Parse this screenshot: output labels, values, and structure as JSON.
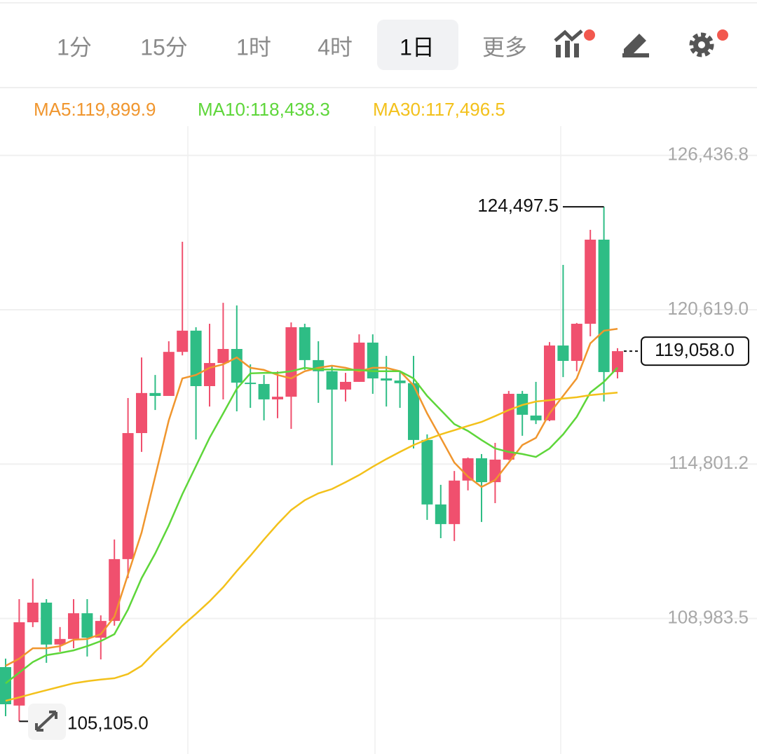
{
  "toolbar": {
    "tabs": [
      "1分",
      "15分",
      "1时",
      "4时",
      "1日",
      "更多"
    ],
    "active_tab": 4
  },
  "chart_data": {
    "type": "candlestick",
    "up_color": "#f0506e",
    "down_color": "#2ebd85",
    "open": [
      107150,
      105700,
      108840,
      109580,
      108000,
      108210,
      109180,
      108260,
      108890,
      111220,
      115970,
      117480,
      117370,
      119030,
      119830,
      117740,
      118610,
      119140,
      117870,
      117820,
      117240,
      117340,
      119960,
      118720,
      118300,
      117610,
      117900,
      119380,
      118030,
      117950,
      117850,
      115710,
      113280,
      112540,
      114180,
      115020,
      114120,
      114970,
      117450,
      116630,
      116450,
      119270,
      118690,
      120090,
      123260,
      118270
    ],
    "high": [
      107470,
      109710,
      110480,
      109710,
      108660,
      109710,
      109710,
      109100,
      111960,
      117290,
      118820,
      118160,
      119430,
      123180,
      119960,
      120090,
      120880,
      120780,
      118560,
      118160,
      118300,
      120140,
      120090,
      119430,
      118530,
      118240,
      119690,
      119690,
      118880,
      118300,
      118880,
      115920,
      114020,
      114540,
      115050,
      115180,
      115600,
      117560,
      117560,
      117900,
      119400,
      122310,
      120120,
      123630,
      124497.5,
      119170
    ],
    "low": [
      105300,
      105105,
      108660,
      107310,
      107730,
      107860,
      107550,
      107440,
      108710,
      110500,
      115260,
      116840,
      117370,
      118900,
      115730,
      116970,
      117240,
      116790,
      116920,
      116450,
      116530,
      116130,
      118350,
      117110,
      114760,
      117160,
      117900,
      117450,
      116970,
      116920,
      115390,
      112700,
      112010,
      111900,
      113810,
      112620,
      113330,
      114950,
      115870,
      116310,
      116420,
      118080,
      118300,
      119620,
      117160,
      118030
    ],
    "close": [
      105750,
      108840,
      109580,
      108000,
      108210,
      109180,
      108260,
      108890,
      111220,
      115970,
      117480,
      117370,
      119030,
      119830,
      117740,
      118610,
      119140,
      117870,
      117820,
      117240,
      117340,
      119960,
      118720,
      118300,
      117610,
      117900,
      119380,
      118030,
      117950,
      117850,
      115710,
      113280,
      112540,
      114180,
      115020,
      114120,
      114970,
      117450,
      116660,
      116450,
      119270,
      118690,
      120090,
      123260,
      118270,
      119058
    ],
    "series": [
      {
        "name": "MA5:119,899.9",
        "color": "#f0962e",
        "values": [
          107200,
          107470,
          107860,
          107860,
          107940,
          108180,
          108210,
          108390,
          109050,
          110640,
          112220,
          114330,
          116450,
          118030,
          118160,
          118430,
          118560,
          118820,
          118430,
          118350,
          118160,
          118030,
          118300,
          118430,
          118510,
          118430,
          118300,
          118430,
          118430,
          118300,
          117770,
          116710,
          115790,
          114860,
          114330,
          113940,
          114200,
          114860,
          115520,
          115790,
          116710,
          117370,
          118030,
          119350,
          119830,
          119899.9
        ]
      },
      {
        "name": "MA10:118,438.3",
        "color": "#5ed63a",
        "values": [
          106540,
          106940,
          107340,
          107600,
          107680,
          107780,
          107940,
          108130,
          108390,
          109320,
          110500,
          111430,
          112490,
          113670,
          114730,
          115790,
          116710,
          117640,
          118220,
          118240,
          118240,
          118300,
          118430,
          118370,
          118370,
          118350,
          118350,
          118300,
          118300,
          118300,
          118030,
          117370,
          116840,
          116310,
          116050,
          115710,
          115390,
          115260,
          115180,
          115070,
          115390,
          115920,
          116580,
          117500,
          117900,
          118438.3
        ]
      },
      {
        "name": "MA30:117,496.5",
        "color": "#f3c11b",
        "values": [
          105880,
          106010,
          106150,
          106280,
          106410,
          106540,
          106620,
          106680,
          106730,
          106890,
          107200,
          107730,
          108210,
          108710,
          109160,
          109630,
          110160,
          110770,
          111350,
          111960,
          112540,
          113070,
          113440,
          113700,
          113860,
          114120,
          114390,
          114700,
          114990,
          115260,
          115520,
          115730,
          115920,
          116080,
          116240,
          116390,
          116610,
          116840,
          117030,
          117160,
          117210,
          117270,
          117320,
          117400,
          117450,
          117496.5
        ]
      }
    ],
    "ylim": [
      103875,
      127010
    ],
    "yticks": [
      {
        "value": 108983.5,
        "label": "108,983.5"
      },
      {
        "value": 114801.2,
        "label": "114,801.2"
      },
      {
        "value": 120619.0,
        "label": "120,619.0"
      },
      {
        "value": 126436.8,
        "label": "126,436.8"
      }
    ],
    "grid": true,
    "max_label": {
      "value": 124497.5,
      "label": "124,497.5"
    },
    "min_label": {
      "value": 105105,
      "label": "105,105.0"
    },
    "last_price": {
      "value": 119058,
      "label": "119,058.0"
    }
  }
}
